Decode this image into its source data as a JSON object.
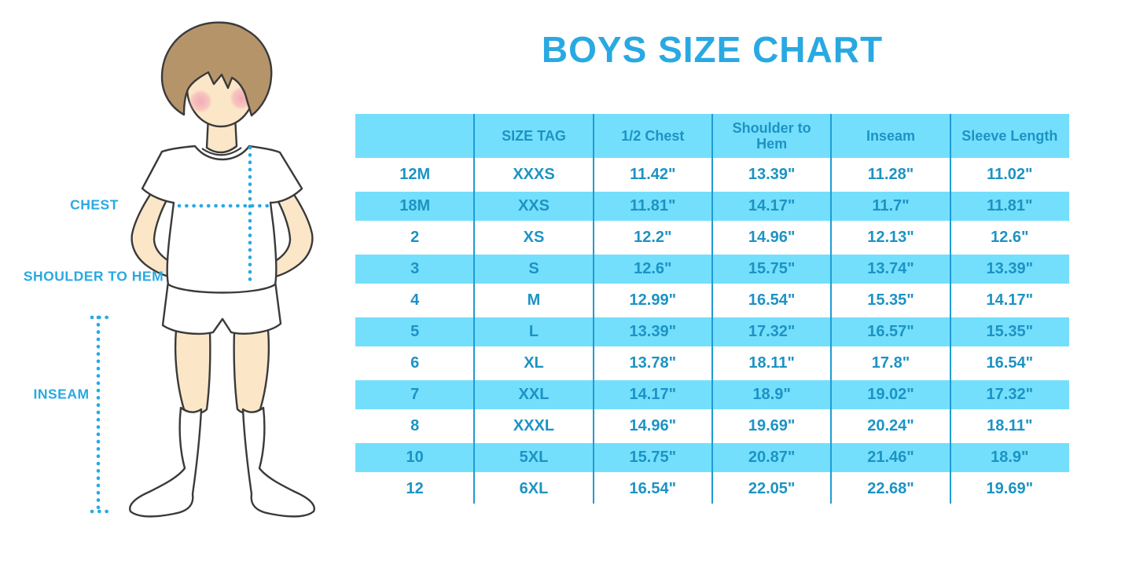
{
  "title": "BOYS SIZE CHART",
  "figure": {
    "illustration": "boy-standing-hands-on-hips",
    "labels": {
      "chest": "CHEST",
      "shoulder_to_hem": "SHOULDER TO HEM",
      "inseam": "INSEAM"
    }
  },
  "chart_data": {
    "type": "table",
    "title": "BOYS SIZE CHART",
    "columns": [
      "",
      "SIZE TAG",
      "1/2 Chest",
      "Shoulder to Hem",
      "Inseam",
      "Sleeve Length"
    ],
    "rows": [
      [
        "12M",
        "XXXS",
        "11.42\"",
        "13.39\"",
        "11.28\"",
        "11.02\""
      ],
      [
        "18M",
        "XXS",
        "11.81\"",
        "14.17\"",
        "11.7\"",
        "11.81\""
      ],
      [
        "2",
        "XS",
        "12.2\"",
        "14.96\"",
        "12.13\"",
        "12.6\""
      ],
      [
        "3",
        "S",
        "12.6\"",
        "15.75\"",
        "13.74\"",
        "13.39\""
      ],
      [
        "4",
        "M",
        "12.99\"",
        "16.54\"",
        "15.35\"",
        "14.17\""
      ],
      [
        "5",
        "L",
        "13.39\"",
        "17.32\"",
        "16.57\"",
        "15.35\""
      ],
      [
        "6",
        "XL",
        "13.78\"",
        "18.11\"",
        "17.8\"",
        "16.54\""
      ],
      [
        "7",
        "XXL",
        "14.17\"",
        "18.9\"",
        "19.02\"",
        "17.32\""
      ],
      [
        "8",
        "XXXL",
        "14.96\"",
        "19.69\"",
        "20.24\"",
        "18.11\""
      ],
      [
        "10",
        "5XL",
        "15.75\"",
        "20.87\"",
        "21.46\"",
        "18.9\""
      ],
      [
        "12",
        "6XL",
        "16.54\"",
        "22.05\"",
        "22.68\"",
        "19.69\""
      ]
    ],
    "row_striping": [
      "white",
      "cyan"
    ],
    "grid": "vertical-column-dividers",
    "legend_position": "none"
  },
  "colors": {
    "accent_blue": "#29A9E2",
    "table_text_blue": "#1C93C4",
    "row_cyan": "#74DFFC",
    "divider_blue": "#1E9CD3",
    "skin": "#FBE7C8",
    "hair_brown": "#B6946A",
    "blush_pink": "#F2A9B6",
    "outline": "#3A3A3A"
  }
}
